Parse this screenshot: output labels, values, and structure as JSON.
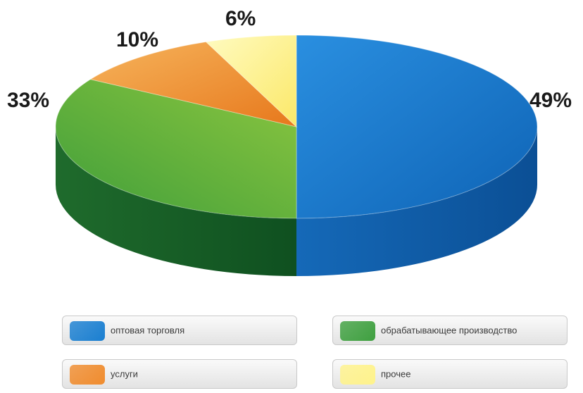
{
  "chart_data": {
    "type": "pie",
    "style": "3d",
    "categories": [
      "оптовая торговля",
      "обрабатывающее производство",
      "услуги",
      "прочее"
    ],
    "values": [
      49,
      33,
      10,
      6
    ],
    "value_labels": [
      "49%",
      "33%",
      "10%",
      "6%"
    ],
    "colors": [
      "#1a7fd1",
      "#58ac3c",
      "#f29536",
      "#fff28a"
    ],
    "legend_position": "bottom"
  },
  "legend": [
    {
      "label": "оптовая торговля",
      "color": "#1a7fd1"
    },
    {
      "label": "обрабатывающее производство",
      "color": "#3fa040"
    },
    {
      "label": "услуги",
      "color": "#f08c2e"
    },
    {
      "label": "прочее",
      "color": "#fff38c"
    }
  ]
}
